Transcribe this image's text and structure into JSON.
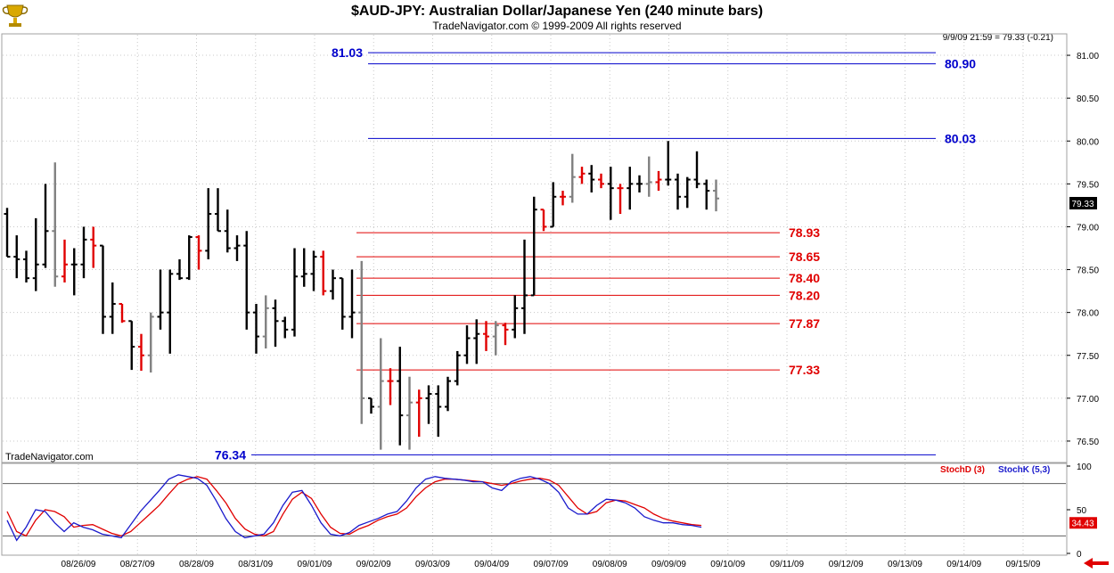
{
  "header": {
    "title": "$AUD-JPY:  Australian Dollar/Japanese Yen  (240 minute bars)",
    "subtitle": "TradeNavigator.com © 1999-2009 All rights reserved",
    "last_quote": "9/9/09 21:59 = 79.33 (-0.21)",
    "watermark": "TradeNavigator.com"
  },
  "colors": {
    "up_bar": "#000000",
    "down_bar": "#e00000",
    "flat_bar": "#808080",
    "blue_level": "#0000cc",
    "red_level": "#e00000",
    "stochD": "#e00000",
    "stochK": "#1a1acc",
    "grid": "#c8c8c8"
  },
  "chart_data": [
    {
      "type": "bar",
      "style": "ohlc",
      "ylim": [
        76.25,
        81.25
      ],
      "y_ticks": [
        "81.00",
        "80.50",
        "80.00",
        "79.50",
        "79.00",
        "78.50",
        "78.00",
        "77.50",
        "77.00",
        "76.50"
      ],
      "x_ticks": [
        "08/26/09",
        "08/27/09",
        "08/28/09",
        "08/31/09",
        "09/01/09",
        "09/02/09",
        "09/03/09",
        "09/04/09",
        "09/07/09",
        "09/08/09",
        "09/09/09",
        "09/10/09",
        "09/11/09",
        "09/12/09",
        "09/13/09",
        "09/14/09",
        "09/15/09"
      ],
      "last_price": "79.33",
      "levels": [
        {
          "label": "81.03",
          "value": 81.03,
          "color": "blue",
          "label_side": "left"
        },
        {
          "label": "80.90",
          "value": 80.9,
          "color": "blue",
          "label_side": "right"
        },
        {
          "label": "80.03",
          "value": 80.03,
          "color": "blue",
          "label_side": "right"
        },
        {
          "label": "78.93",
          "value": 78.93,
          "color": "red",
          "label_side": "right"
        },
        {
          "label": "78.65",
          "value": 78.65,
          "color": "red",
          "label_side": "right"
        },
        {
          "label": "78.40",
          "value": 78.4,
          "color": "red",
          "label_side": "right"
        },
        {
          "label": "78.20",
          "value": 78.2,
          "color": "red",
          "label_side": "right"
        },
        {
          "label": "77.87",
          "value": 77.87,
          "color": "red",
          "label_side": "right"
        },
        {
          "label": "77.33",
          "value": 77.33,
          "color": "red",
          "label_side": "right"
        },
        {
          "label": "76.34",
          "value": 76.34,
          "color": "blue",
          "label_side": "left"
        }
      ],
      "bars": [
        {
          "o": 79.15,
          "h": 79.22,
          "l": 78.65,
          "c": 78.65,
          "k": "d"
        },
        {
          "o": 78.65,
          "h": 78.9,
          "l": 78.4,
          "c": 78.62,
          "k": "d"
        },
        {
          "o": 78.62,
          "h": 78.72,
          "l": 78.35,
          "c": 78.4,
          "k": "d"
        },
        {
          "o": 78.4,
          "h": 79.1,
          "l": 78.25,
          "c": 78.56,
          "k": "u"
        },
        {
          "o": 78.56,
          "h": 79.5,
          "l": 78.52,
          "c": 78.95,
          "k": "u"
        },
        {
          "o": 78.95,
          "h": 79.75,
          "l": 78.3,
          "c": 78.42,
          "k": "f"
        },
        {
          "o": 78.42,
          "h": 78.85,
          "l": 78.35,
          "c": 78.56,
          "k": "r"
        },
        {
          "o": 78.56,
          "h": 78.75,
          "l": 78.2,
          "c": 78.56,
          "k": "d"
        },
        {
          "o": 78.56,
          "h": 79.0,
          "l": 78.4,
          "c": 78.85,
          "k": "u"
        },
        {
          "o": 78.85,
          "h": 79.0,
          "l": 78.52,
          "c": 78.78,
          "k": "r"
        },
        {
          "o": 78.78,
          "h": 78.78,
          "l": 77.75,
          "c": 77.95,
          "k": "d"
        },
        {
          "o": 77.95,
          "h": 78.35,
          "l": 77.75,
          "c": 78.1,
          "k": "u"
        },
        {
          "o": 78.1,
          "h": 78.1,
          "l": 77.88,
          "c": 77.9,
          "k": "r"
        },
        {
          "o": 77.9,
          "h": 77.9,
          "l": 77.33,
          "c": 77.6,
          "k": "d"
        },
        {
          "o": 77.6,
          "h": 77.75,
          "l": 77.32,
          "c": 77.5,
          "k": "r"
        },
        {
          "o": 77.5,
          "h": 78.0,
          "l": 77.3,
          "c": 77.95,
          "k": "f"
        },
        {
          "o": 77.95,
          "h": 78.5,
          "l": 77.8,
          "c": 78.0,
          "k": "u"
        },
        {
          "o": 78.0,
          "h": 78.5,
          "l": 77.52,
          "c": 78.45,
          "k": "u"
        },
        {
          "o": 78.45,
          "h": 78.62,
          "l": 78.38,
          "c": 78.4,
          "k": "d"
        },
        {
          "o": 78.4,
          "h": 78.9,
          "l": 78.38,
          "c": 78.88,
          "k": "u"
        },
        {
          "o": 78.88,
          "h": 78.9,
          "l": 78.5,
          "c": 78.72,
          "k": "r"
        },
        {
          "o": 78.72,
          "h": 79.45,
          "l": 78.62,
          "c": 79.15,
          "k": "u"
        },
        {
          "o": 79.15,
          "h": 79.45,
          "l": 78.95,
          "c": 78.95,
          "k": "d"
        },
        {
          "o": 78.95,
          "h": 79.2,
          "l": 78.7,
          "c": 78.75,
          "k": "d"
        },
        {
          "o": 78.75,
          "h": 78.9,
          "l": 78.6,
          "c": 78.78,
          "k": "u"
        },
        {
          "o": 78.78,
          "h": 78.95,
          "l": 77.8,
          "c": 78.0,
          "k": "d"
        },
        {
          "o": 78.0,
          "h": 78.1,
          "l": 77.52,
          "c": 77.72,
          "k": "d"
        },
        {
          "o": 77.72,
          "h": 78.2,
          "l": 77.58,
          "c": 78.05,
          "k": "f"
        },
        {
          "o": 78.05,
          "h": 78.15,
          "l": 77.6,
          "c": 77.9,
          "k": "d"
        },
        {
          "o": 77.9,
          "h": 77.95,
          "l": 77.7,
          "c": 77.8,
          "k": "d"
        },
        {
          "o": 77.8,
          "h": 78.75,
          "l": 77.72,
          "c": 78.42,
          "k": "u"
        },
        {
          "o": 78.42,
          "h": 78.75,
          "l": 78.3,
          "c": 78.45,
          "k": "d"
        },
        {
          "o": 78.45,
          "h": 78.72,
          "l": 78.25,
          "c": 78.65,
          "k": "u"
        },
        {
          "o": 78.65,
          "h": 78.72,
          "l": 78.2,
          "c": 78.25,
          "k": "r"
        },
        {
          "o": 78.25,
          "h": 78.5,
          "l": 78.15,
          "c": 78.4,
          "k": "u"
        },
        {
          "o": 78.4,
          "h": 78.4,
          "l": 77.8,
          "c": 77.95,
          "k": "d"
        },
        {
          "o": 77.95,
          "h": 78.5,
          "l": 77.7,
          "c": 78.0,
          "k": "d"
        },
        {
          "o": 78.0,
          "h": 78.6,
          "l": 76.7,
          "c": 77.0,
          "k": "f"
        },
        {
          "o": 77.0,
          "h": 77.0,
          "l": 76.82,
          "c": 76.9,
          "k": "d"
        },
        {
          "o": 76.9,
          "h": 77.7,
          "l": 76.4,
          "c": 77.2,
          "k": "f"
        },
        {
          "o": 77.2,
          "h": 77.35,
          "l": 76.92,
          "c": 77.2,
          "k": "r"
        },
        {
          "o": 77.2,
          "h": 77.6,
          "l": 76.45,
          "c": 76.8,
          "k": "d"
        },
        {
          "o": 76.8,
          "h": 77.25,
          "l": 76.4,
          "c": 76.95,
          "k": "f"
        },
        {
          "o": 76.95,
          "h": 77.1,
          "l": 76.55,
          "c": 77.0,
          "k": "r"
        },
        {
          "o": 77.0,
          "h": 77.15,
          "l": 76.7,
          "c": 77.05,
          "k": "d"
        },
        {
          "o": 77.05,
          "h": 77.15,
          "l": 76.55,
          "c": 76.9,
          "k": "u"
        },
        {
          "o": 76.9,
          "h": 77.25,
          "l": 76.85,
          "c": 77.2,
          "k": "u"
        },
        {
          "o": 77.2,
          "h": 77.55,
          "l": 77.15,
          "c": 77.5,
          "k": "u"
        },
        {
          "o": 77.5,
          "h": 77.85,
          "l": 77.4,
          "c": 77.7,
          "k": "u"
        },
        {
          "o": 77.7,
          "h": 77.92,
          "l": 77.4,
          "c": 77.75,
          "k": "d"
        },
        {
          "o": 77.75,
          "h": 77.9,
          "l": 77.55,
          "c": 77.72,
          "k": "r"
        },
        {
          "o": 77.72,
          "h": 77.9,
          "l": 77.5,
          "c": 77.85,
          "k": "f"
        },
        {
          "o": 77.85,
          "h": 77.88,
          "l": 77.62,
          "c": 77.8,
          "k": "r"
        },
        {
          "o": 77.8,
          "h": 78.2,
          "l": 77.7,
          "c": 78.05,
          "k": "u"
        },
        {
          "o": 78.05,
          "h": 78.85,
          "l": 77.75,
          "c": 78.2,
          "k": "u"
        },
        {
          "o": 78.2,
          "h": 79.35,
          "l": 78.2,
          "c": 79.2,
          "k": "u"
        },
        {
          "o": 79.2,
          "h": 79.2,
          "l": 78.95,
          "c": 79.0,
          "k": "r"
        },
        {
          "o": 79.0,
          "h": 79.52,
          "l": 79.0,
          "c": 79.35,
          "k": "u"
        },
        {
          "o": 79.35,
          "h": 79.42,
          "l": 79.25,
          "c": 79.35,
          "k": "r"
        },
        {
          "o": 79.35,
          "h": 79.85,
          "l": 79.28,
          "c": 79.58,
          "k": "f"
        },
        {
          "o": 79.58,
          "h": 79.7,
          "l": 79.5,
          "c": 79.62,
          "k": "r"
        },
        {
          "o": 79.62,
          "h": 79.72,
          "l": 79.4,
          "c": 79.55,
          "k": "d"
        },
        {
          "o": 79.55,
          "h": 79.62,
          "l": 79.45,
          "c": 79.5,
          "k": "r"
        },
        {
          "o": 79.5,
          "h": 79.7,
          "l": 79.08,
          "c": 79.45,
          "k": "d"
        },
        {
          "o": 79.45,
          "h": 79.5,
          "l": 79.15,
          "c": 79.45,
          "k": "r"
        },
        {
          "o": 79.45,
          "h": 79.7,
          "l": 79.2,
          "c": 79.5,
          "k": "u"
        },
        {
          "o": 79.5,
          "h": 79.6,
          "l": 79.4,
          "c": 79.5,
          "k": "d"
        },
        {
          "o": 79.5,
          "h": 79.82,
          "l": 79.35,
          "c": 79.52,
          "k": "f"
        },
        {
          "o": 79.52,
          "h": 79.65,
          "l": 79.42,
          "c": 79.55,
          "k": "r"
        },
        {
          "o": 79.55,
          "h": 80.0,
          "l": 79.48,
          "c": 79.55,
          "k": "u"
        },
        {
          "o": 79.55,
          "h": 79.62,
          "l": 79.2,
          "c": 79.35,
          "k": "d"
        },
        {
          "o": 79.35,
          "h": 79.58,
          "l": 79.22,
          "c": 79.55,
          "k": "u"
        },
        {
          "o": 79.55,
          "h": 79.88,
          "l": 79.45,
          "c": 79.5,
          "k": "d"
        },
        {
          "o": 79.5,
          "h": 79.55,
          "l": 79.2,
          "c": 79.42,
          "k": "d"
        },
        {
          "o": 79.42,
          "h": 79.55,
          "l": 79.18,
          "c": 79.33,
          "k": "f"
        }
      ]
    },
    {
      "type": "line",
      "name": "stochastic",
      "ylim": [
        0,
        100
      ],
      "y_ticks": [
        "100",
        "50",
        "34.43",
        "0"
      ],
      "reference_lines": [
        80,
        20
      ],
      "series": [
        {
          "name": "StochD (3)",
          "color": "red",
          "values": [
            48,
            25,
            20,
            38,
            50,
            48,
            42,
            30,
            32,
            33,
            28,
            23,
            20,
            25,
            35,
            45,
            55,
            68,
            80,
            85,
            88,
            85,
            72,
            58,
            40,
            28,
            22,
            20,
            25,
            45,
            62,
            70,
            63,
            45,
            30,
            23,
            22,
            28,
            32,
            38,
            42,
            45,
            52,
            65,
            75,
            82,
            85,
            85,
            84,
            83,
            82,
            80,
            78,
            80,
            83,
            85,
            86,
            84,
            78,
            65,
            52,
            45,
            48,
            58,
            61,
            60,
            56,
            52,
            45,
            40,
            37,
            35,
            33,
            32
          ]
        },
        {
          "name": "StochK (5,3)",
          "color": "blue",
          "values": [
            38,
            15,
            30,
            50,
            48,
            35,
            25,
            35,
            30,
            27,
            22,
            20,
            18,
            33,
            48,
            60,
            72,
            85,
            90,
            88,
            86,
            78,
            60,
            40,
            25,
            18,
            20,
            22,
            35,
            55,
            70,
            72,
            55,
            35,
            22,
            20,
            24,
            32,
            36,
            40,
            45,
            48,
            60,
            75,
            85,
            88,
            86,
            85,
            84,
            82,
            82,
            75,
            72,
            82,
            86,
            88,
            85,
            80,
            70,
            52,
            45,
            45,
            55,
            62,
            61,
            58,
            52,
            42,
            38,
            35,
            35,
            33,
            32,
            30
          ]
        }
      ]
    }
  ]
}
